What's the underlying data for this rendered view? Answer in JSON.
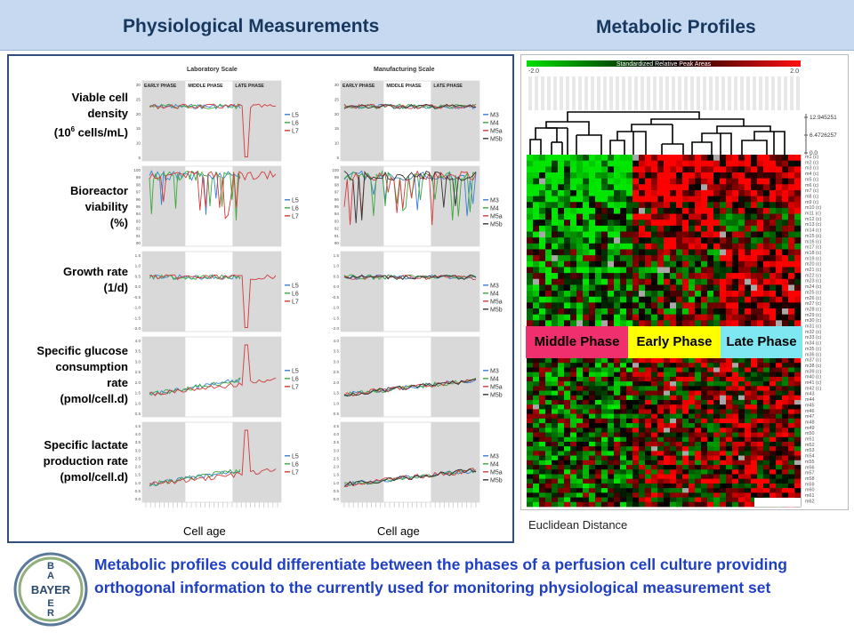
{
  "header": {
    "left_title": "Physiological Measurements",
    "right_title": "Metabolic Profiles"
  },
  "left": {
    "lab_title": "Laboratory Scale",
    "mfg_title": "Manufacturing Scale",
    "phases": [
      "EARLY PHASE",
      "MIDDLE PHASE",
      "LATE PHASE"
    ],
    "x_label": "Cell age",
    "rows": [
      {
        "label_lines": [
          "Viable cell",
          "density"
        ],
        "label_sup": {
          "pre": "(10",
          "sup": "6",
          "post": " cells/mL)"
        },
        "lab_ticks": [
          "30",
          "25",
          "20",
          "15",
          "10",
          "5"
        ],
        "mfg_ticks": [
          "30",
          "25",
          "20",
          "15",
          "10",
          "5"
        ],
        "lab_legend": [
          "L5",
          "L6",
          "L7"
        ],
        "mfg_legend": [
          "M3",
          "M4",
          "M5a",
          "M5b"
        ]
      },
      {
        "label_lines": [
          "Bioreactor",
          "viability",
          "(%)"
        ],
        "lab_ticks": [
          "100",
          "99",
          "98",
          "97",
          "96",
          "95",
          "94",
          "93",
          "92",
          "91",
          "90"
        ],
        "mfg_ticks": [
          "100",
          "99",
          "98",
          "97",
          "96",
          "95",
          "94",
          "93",
          "92",
          "91",
          "90"
        ],
        "lab_legend": [
          "L5",
          "L6",
          "L7"
        ],
        "mfg_legend": [
          "M3",
          "M4",
          "M5a",
          "M5b"
        ]
      },
      {
        "label_lines": [
          "Growth rate",
          "(1/d)"
        ],
        "lab_ticks": [
          "1.5",
          "1.0",
          "0.5",
          "0.0",
          "-0.5",
          "-1.0",
          "-1.5",
          "-2.0"
        ],
        "mfg_ticks": [
          "1.5",
          "1.0",
          "0.5",
          "0.0",
          "-0.5",
          "-1.0",
          "-1.5",
          "-2.0"
        ],
        "lab_legend": [
          "L5",
          "L6",
          "L7"
        ],
        "mfg_legend": [
          "M3",
          "M4",
          "M5a",
          "M5b"
        ]
      },
      {
        "label_lines": [
          "Specific glucose",
          "consumption",
          "rate",
          "(pmol/cell.d)"
        ],
        "lab_ticks": [
          "4.0",
          "3.5",
          "3.0",
          "2.5",
          "2.0",
          "1.5",
          "1.0",
          "0.5"
        ],
        "mfg_ticks": [
          "4.0",
          "3.5",
          "3.0",
          "2.5",
          "2.0",
          "1.5",
          "1.0",
          "0.5"
        ],
        "lab_legend": [
          "L5",
          "L6",
          "L7"
        ],
        "mfg_legend": [
          "M3",
          "M4",
          "M5a",
          "M5b"
        ]
      },
      {
        "label_lines": [
          "Specific lactate",
          "production rate",
          "(pmol/cell.d)"
        ],
        "lab_ticks": [
          "4.5",
          "4.0",
          "3.5",
          "3.0",
          "2.5",
          "2.0",
          "1.5",
          "1.0",
          "0.5",
          "0.0"
        ],
        "mfg_ticks": [
          "4.5",
          "4.0",
          "3.5",
          "3.0",
          "2.5",
          "2.0",
          "1.5",
          "1.0",
          "0.5",
          "0.0"
        ],
        "lab_legend": [
          "L5",
          "L6",
          "L7"
        ],
        "mfg_legend": [
          "M3",
          "M4",
          "M5a",
          "M5b"
        ]
      }
    ],
    "colors": {
      "lab": [
        "#3b7fd1",
        "#3aa83a",
        "#d23a3a"
      ],
      "mfg": [
        "#3b7fd1",
        "#3aa83a",
        "#d23a3a",
        "#333333"
      ]
    }
  },
  "right": {
    "scale_left": "-2.0",
    "scale_title": "Standardized Relative Peak Areas",
    "scale_right": "2.0",
    "dendro_values": [
      "12.945251",
      "6.4726257",
      "0.0"
    ],
    "phase_labels": [
      "Middle Phase",
      "Early Phase",
      "Late Phase"
    ],
    "phase_colors": [
      "#f0306e",
      "#ffff00",
      "#7fe7f2"
    ],
    "footer": "Euclidean Distance",
    "row_labels": [
      "m1 (c)",
      "m2 (c)",
      "m3 (c)",
      "m4 (c)",
      "m5 (c)",
      "m6 (c)",
      "m7 (c)",
      "m8 (c)",
      "m9 (c)",
      "m10 (c)",
      "m11 (c)",
      "m12 (c)",
      "m13 (c)",
      "m14 (c)",
      "m15 (c)",
      "m16 (c)",
      "m17 (c)",
      "m18 (c)",
      "m19 (c)",
      "m20 (c)",
      "m21 (c)",
      "m22 (c)",
      "m23 (c)",
      "m24 (c)",
      "m25 (c)",
      "m26 (c)",
      "m27 (c)",
      "m28 (c)",
      "m29 (c)",
      "m30 (c)",
      "m31 (c)",
      "m32 (c)",
      "m33 (c)",
      "m34 (c)",
      "m35 (c)",
      "m36 (c)",
      "m37 (c)",
      "m38 (c)",
      "m39 (c)",
      "m40 (c)",
      "m41 (c)",
      "m42 (c)",
      "m43",
      "m44",
      "m45",
      "m46",
      "m47",
      "m48",
      "m49",
      "m50",
      "m51",
      "m52",
      "m53",
      "m54",
      "m55",
      "m56",
      "m57",
      "m58",
      "m59",
      "m60",
      "m61",
      "m62"
    ]
  },
  "bottom": {
    "logo_text": "BAYER",
    "conclusion": "Metabolic profiles could differentiate between the phases of a perfusion cell culture providing orthogonal information to the currently used for monitoring physiological measurement set"
  }
}
